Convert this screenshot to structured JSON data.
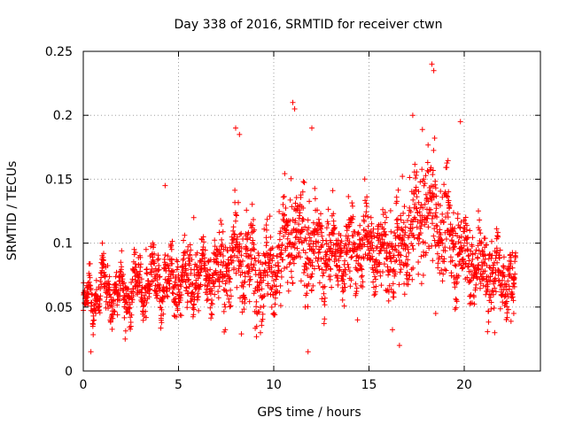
{
  "chart_data": {
    "type": "scatter",
    "title": "Day 338 of 2016, SRMTID for receiver ctwn",
    "xlabel": "GPS time / hours",
    "ylabel": "SRMTID / TECUs",
    "xlim": [
      0,
      24
    ],
    "ylim": [
      0,
      0.25
    ],
    "x_ticks": [
      0,
      5,
      10,
      15,
      20
    ],
    "x_tick_labels": [
      "0",
      "5",
      "10",
      "15",
      "20"
    ],
    "y_ticks": [
      0,
      0.05,
      0.1,
      0.15,
      0.2,
      0.25
    ],
    "y_tick_labels": [
      "0",
      "0.05",
      "0.1",
      "0.15",
      "0.2",
      "0.25"
    ],
    "grid": true,
    "marker": "+",
    "color": "#ff0000",
    "x_range_of_data": [
      0,
      22.7
    ],
    "approx_points": 2400,
    "highlighted_points": [
      {
        "x": 0.2,
        "y": 0.065
      },
      {
        "x": 0.4,
        "y": 0.015
      },
      {
        "x": 0.5,
        "y": 0.035
      },
      {
        "x": 1.0,
        "y": 0.1
      },
      {
        "x": 2.2,
        "y": 0.025
      },
      {
        "x": 3.3,
        "y": 0.095
      },
      {
        "x": 4.3,
        "y": 0.145
      },
      {
        "x": 5.8,
        "y": 0.12
      },
      {
        "x": 8.0,
        "y": 0.19
      },
      {
        "x": 8.2,
        "y": 0.185
      },
      {
        "x": 9.3,
        "y": 0.03
      },
      {
        "x": 11.0,
        "y": 0.21
      },
      {
        "x": 11.1,
        "y": 0.205
      },
      {
        "x": 11.8,
        "y": 0.015
      },
      {
        "x": 12.0,
        "y": 0.19
      },
      {
        "x": 14.4,
        "y": 0.04
      },
      {
        "x": 16.6,
        "y": 0.02
      },
      {
        "x": 17.3,
        "y": 0.2
      },
      {
        "x": 18.3,
        "y": 0.24
      },
      {
        "x": 18.4,
        "y": 0.235
      },
      {
        "x": 18.5,
        "y": 0.045
      },
      {
        "x": 19.8,
        "y": 0.195
      },
      {
        "x": 21.6,
        "y": 0.03
      },
      {
        "x": 22.6,
        "y": 0.045
      }
    ],
    "trend": [
      {
        "x": 0,
        "y": 0.05
      },
      {
        "x": 1,
        "y": 0.065
      },
      {
        "x": 2,
        "y": 0.06
      },
      {
        "x": 3,
        "y": 0.065
      },
      {
        "x": 4,
        "y": 0.07
      },
      {
        "x": 5,
        "y": 0.07
      },
      {
        "x": 6,
        "y": 0.075
      },
      {
        "x": 7,
        "y": 0.075
      },
      {
        "x": 8,
        "y": 0.09
      },
      {
        "x": 9,
        "y": 0.08
      },
      {
        "x": 10,
        "y": 0.075
      },
      {
        "x": 11,
        "y": 0.11
      },
      {
        "x": 12,
        "y": 0.095
      },
      {
        "x": 13,
        "y": 0.09
      },
      {
        "x": 14,
        "y": 0.095
      },
      {
        "x": 15,
        "y": 0.1
      },
      {
        "x": 16,
        "y": 0.09
      },
      {
        "x": 17,
        "y": 0.1
      },
      {
        "x": 18,
        "y": 0.13
      },
      {
        "x": 19,
        "y": 0.11
      },
      {
        "x": 20,
        "y": 0.09
      },
      {
        "x": 21,
        "y": 0.08
      },
      {
        "x": 22,
        "y": 0.075
      },
      {
        "x": 22.7,
        "y": 0.065
      }
    ],
    "spread": [
      {
        "x": 0,
        "y": 0.012
      },
      {
        "x": 3,
        "y": 0.015
      },
      {
        "x": 6,
        "y": 0.018
      },
      {
        "x": 8,
        "y": 0.028
      },
      {
        "x": 10,
        "y": 0.025
      },
      {
        "x": 12,
        "y": 0.03
      },
      {
        "x": 15,
        "y": 0.022
      },
      {
        "x": 18,
        "y": 0.035
      },
      {
        "x": 20,
        "y": 0.025
      },
      {
        "x": 22.7,
        "y": 0.02
      }
    ]
  }
}
